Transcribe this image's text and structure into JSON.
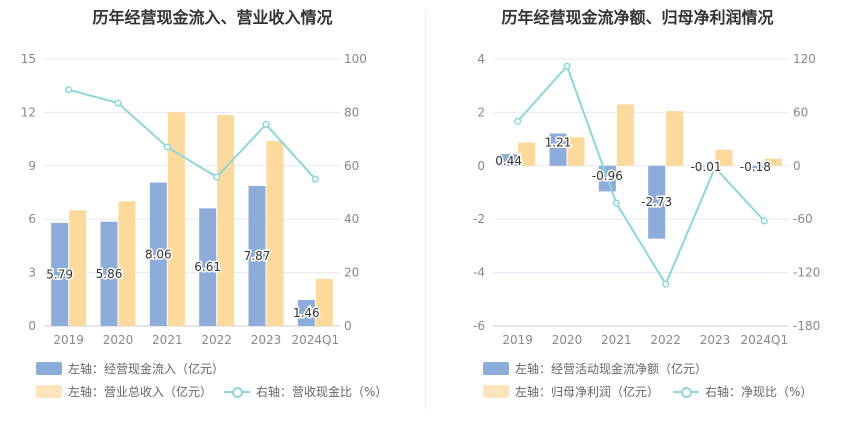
{
  "colors": {
    "bar_primary": "#8eacd9",
    "bar_secondary": "#fdd99b",
    "line": "#8dd6da",
    "grid": "#e6e9f0",
    "axis_text": "#888888",
    "label_text": "#333333"
  },
  "chart_data": [
    {
      "type": "bar+line",
      "title": "历年经营现金流入、营业收入情况",
      "categories": [
        "2019",
        "2020",
        "2021",
        "2022",
        "2023",
        "2024Q1"
      ],
      "y_left": {
        "min": 0,
        "max": 15,
        "ticks": [
          "0",
          "3",
          "6",
          "9",
          "12",
          "15"
        ]
      },
      "y_right": {
        "min": 0,
        "max": 100,
        "ticks": [
          "0",
          "20",
          "40",
          "60",
          "80",
          "100"
        ]
      },
      "series": [
        {
          "name": "经营现金流入",
          "axis": "left",
          "kind": "bar",
          "values": [
            5.79,
            5.86,
            8.06,
            6.61,
            7.87,
            1.46
          ],
          "labels": [
            "5.79",
            "5.86",
            "8.06",
            "6.61",
            "7.87",
            "1.46"
          ]
        },
        {
          "name": "营业总收入",
          "axis": "left",
          "kind": "bar",
          "values": [
            6.5,
            7.0,
            12.0,
            11.85,
            10.4,
            2.65
          ]
        },
        {
          "name": "营收现金比",
          "axis": "right",
          "kind": "line",
          "values": [
            88.5,
            83.5,
            67.0,
            55.8,
            75.5,
            55.0
          ]
        }
      ],
      "legend": [
        {
          "kind": "bar",
          "color_key": "bar_primary",
          "text": "左轴：经营现金流入（亿元）"
        },
        {
          "kind": "bar",
          "color_key": "bar_secondary",
          "text": "左轴：营业总收入（亿元）"
        },
        {
          "kind": "line",
          "text": "右轴：营收现金比（%）"
        }
      ]
    },
    {
      "type": "bar+line",
      "title": "历年经营现金流净额、归母净利润情况",
      "categories": [
        "2019",
        "2020",
        "2021",
        "2022",
        "2023",
        "2024Q1"
      ],
      "y_left": {
        "min": -6,
        "max": 4,
        "ticks": [
          "-6",
          "-4",
          "-2",
          "0",
          "2",
          "4"
        ]
      },
      "y_right": {
        "min": -180,
        "max": 120,
        "ticks": [
          "-180",
          "-120",
          "-60",
          "0",
          "60",
          "120"
        ]
      },
      "series": [
        {
          "name": "经营活动现金流净额",
          "axis": "left",
          "kind": "bar",
          "values": [
            0.44,
            1.21,
            -0.96,
            -2.73,
            -0.01,
            -0.18
          ],
          "labels": [
            "0.44",
            "1.21",
            "-0.96",
            "-2.73",
            "-0.01",
            "-0.18"
          ]
        },
        {
          "name": "归母净利润",
          "axis": "left",
          "kind": "bar",
          "values": [
            0.87,
            1.07,
            2.3,
            2.05,
            0.6,
            0.27
          ]
        },
        {
          "name": "净现比",
          "axis": "right",
          "kind": "line",
          "values": [
            50.0,
            112.0,
            -42.0,
            -133.0,
            -2.0,
            -62.0
          ]
        }
      ],
      "legend": [
        {
          "kind": "bar",
          "color_key": "bar_primary",
          "text": "左轴：经营活动现金流净额（亿元）"
        },
        {
          "kind": "bar",
          "color_key": "bar_secondary",
          "text": "左轴：归母净利润（亿元）"
        },
        {
          "kind": "line",
          "text": "右轴：净现比（%）"
        }
      ]
    }
  ]
}
